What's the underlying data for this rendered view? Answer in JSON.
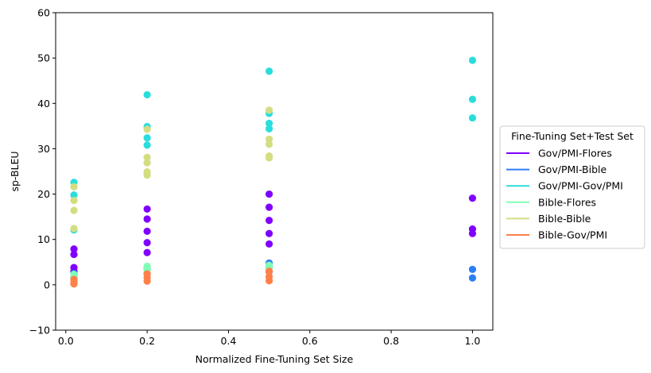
{
  "chart_data": {
    "type": "scatter",
    "title": "",
    "xlabel": "Normalized Fine-Tuning Set Size",
    "ylabel": "sp-BLEU",
    "xlim": [
      -0.025,
      1.05
    ],
    "ylim": [
      -10,
      60
    ],
    "xticks": [
      0.0,
      0.2,
      0.4,
      0.6,
      0.8,
      1.0
    ],
    "xtick_labels": [
      "0.0",
      "0.2",
      "0.4",
      "0.6",
      "0.8",
      "1.0"
    ],
    "yticks": [
      -10,
      0,
      10,
      20,
      30,
      40,
      50,
      60
    ],
    "ytick_labels": [
      "−10",
      "0",
      "10",
      "20",
      "30",
      "40",
      "50",
      "60"
    ],
    "legend_title": "Fine-Tuning Set+Test Set",
    "legend_position": "outside-right",
    "series": [
      {
        "name": "Gov/PMI-Flores",
        "color": "#8000ff",
        "points": [
          [
            0.02,
            7.9
          ],
          [
            0.02,
            6.7
          ],
          [
            0.02,
            3.8
          ],
          [
            0.02,
            3.0
          ],
          [
            0.2,
            16.7
          ],
          [
            0.2,
            14.5
          ],
          [
            0.2,
            11.8
          ],
          [
            0.2,
            9.3
          ],
          [
            0.2,
            7.1
          ],
          [
            0.5,
            20.0
          ],
          [
            0.5,
            17.1
          ],
          [
            0.5,
            14.2
          ],
          [
            0.5,
            11.3
          ],
          [
            0.5,
            9.0
          ],
          [
            1.0,
            19.1
          ],
          [
            1.0,
            12.3
          ],
          [
            1.0,
            11.3
          ]
        ]
      },
      {
        "name": "Gov/PMI-Bible",
        "color": "#2c7ef7",
        "points": [
          [
            0.02,
            2.5
          ],
          [
            0.02,
            1.5
          ],
          [
            0.2,
            3.5
          ],
          [
            0.2,
            2.5
          ],
          [
            0.5,
            4.8
          ],
          [
            0.5,
            3.9
          ],
          [
            0.5,
            2.9
          ],
          [
            1.0,
            3.4
          ],
          [
            1.0,
            1.5
          ]
        ]
      },
      {
        "name": "Gov/PMI-Gov/PMI",
        "color": "#2adddd",
        "points": [
          [
            0.02,
            22.6
          ],
          [
            0.02,
            19.8
          ],
          [
            0.02,
            12.1
          ],
          [
            0.2,
            41.9
          ],
          [
            0.2,
            34.9
          ],
          [
            0.2,
            32.4
          ],
          [
            0.2,
            30.8
          ],
          [
            0.5,
            47.1
          ],
          [
            0.5,
            37.8
          ],
          [
            0.5,
            35.6
          ],
          [
            0.5,
            34.4
          ],
          [
            1.0,
            49.5
          ],
          [
            1.0,
            40.9
          ],
          [
            1.0,
            36.8
          ]
        ]
      },
      {
        "name": "Bible-Flores",
        "color": "#80ffb4",
        "points": [
          [
            0.02,
            2.3
          ],
          [
            0.02,
            1.7
          ],
          [
            0.2,
            4.1
          ],
          [
            0.2,
            3.3
          ],
          [
            0.5,
            4.3
          ],
          [
            0.5,
            3.6
          ]
        ]
      },
      {
        "name": "Bible-Bible",
        "color": "#d4dd80",
        "points": [
          [
            0.02,
            21.6
          ],
          [
            0.02,
            18.6
          ],
          [
            0.02,
            16.4
          ],
          [
            0.02,
            12.4
          ],
          [
            0.2,
            34.3
          ],
          [
            0.2,
            28.1
          ],
          [
            0.2,
            26.9
          ],
          [
            0.2,
            24.9
          ],
          [
            0.2,
            24.2
          ],
          [
            0.5,
            38.5
          ],
          [
            0.5,
            32.1
          ],
          [
            0.5,
            31.0
          ],
          [
            0.5,
            28.4
          ],
          [
            0.5,
            28.0
          ]
        ]
      },
      {
        "name": "Bible-Gov/PMI",
        "color": "#ff8048",
        "points": [
          [
            0.02,
            1.2
          ],
          [
            0.02,
            0.6
          ],
          [
            0.02,
            0.2
          ],
          [
            0.2,
            2.4
          ],
          [
            0.2,
            1.6
          ],
          [
            0.2,
            0.8
          ],
          [
            0.5,
            3.0
          ],
          [
            0.5,
            1.8
          ],
          [
            0.5,
            0.9
          ]
        ]
      }
    ]
  }
}
